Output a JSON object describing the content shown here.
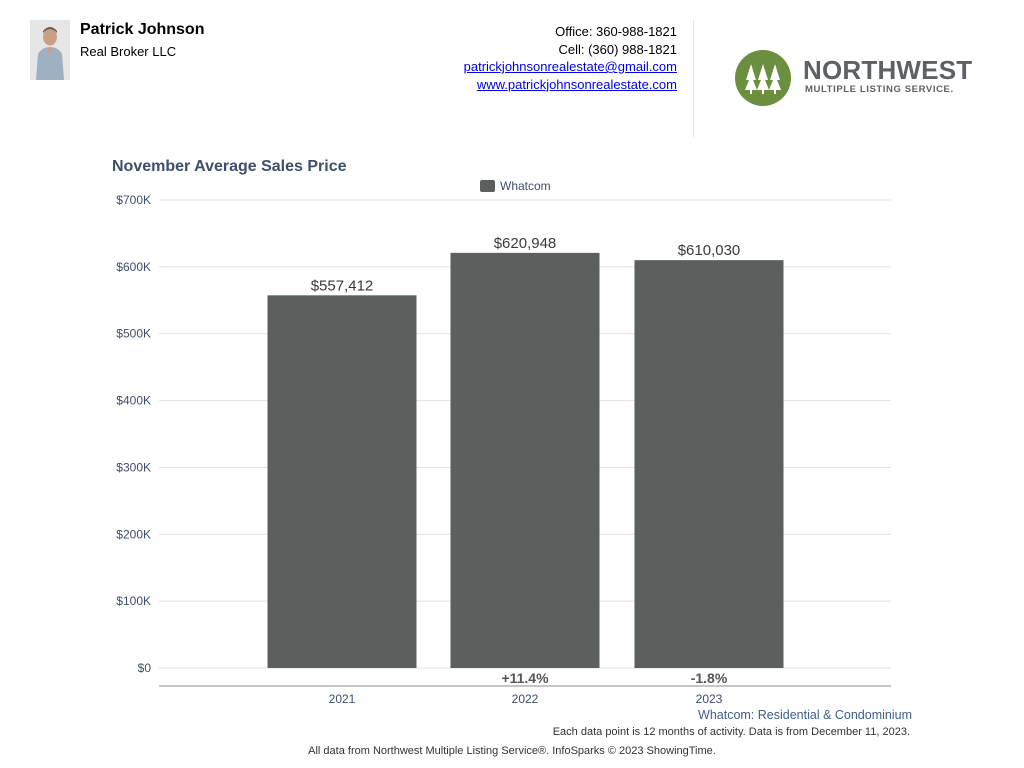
{
  "header": {
    "agent_name": "Patrick Johnson",
    "agent_company": "Real Broker LLC",
    "office": "Office: 360-988-1821",
    "cell": "Cell: (360) 988-1821",
    "email": "patrickjohnsonrealestate@gmail.com",
    "website": "www.patrickjohnsonrealestate.com",
    "logo_word": "NORTHWEST",
    "logo_sub": "MULTIPLE LISTING SERVICE."
  },
  "chart_data": {
    "type": "bar",
    "title": "November Average Sales Price",
    "categories": [
      "2021",
      "2022",
      "2023"
    ],
    "series": [
      {
        "name": "Whatcom",
        "values": [
          557412,
          620948,
          610030
        ],
        "color": "#5b5f5d"
      }
    ],
    "value_labels": [
      "$557,412",
      "$620,948",
      "$610,030"
    ],
    "change_labels": [
      "",
      "+11.4%",
      "-1.8%"
    ],
    "yticks": [
      "$0",
      "$100K",
      "$200K",
      "$300K",
      "$400K",
      "$500K",
      "$600K",
      "$700K"
    ],
    "ylim": [
      0,
      700000
    ],
    "grid": true,
    "legend_position": "top-center"
  },
  "notes": {
    "region": "Whatcom: Residential & Condominium",
    "data": "Each data point is 12 months of activity. Data is from December 11, 2023.",
    "footer": "All data from Northwest Multiple Listing Service®. InfoSparks © 2023 ShowingTime."
  },
  "colors": {
    "bar": "#5b5f5d",
    "title": "#3d4f6a",
    "logo_green": "#6c8f3f",
    "logo_text": "#5c6166"
  }
}
